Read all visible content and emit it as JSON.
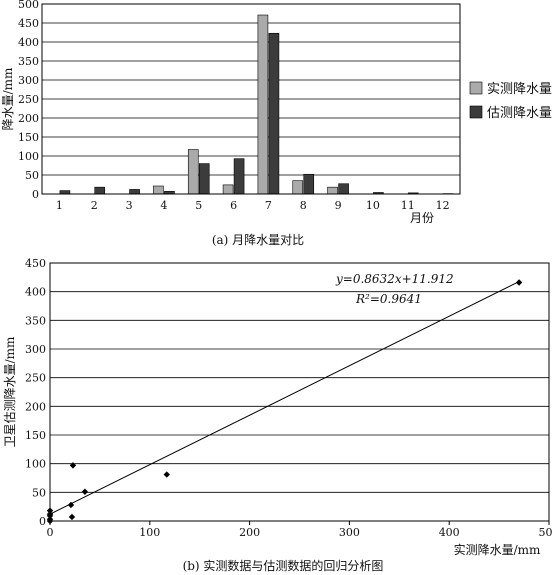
{
  "chart_data": [
    {
      "type": "bar",
      "caption": "(a) 月降水量对比",
      "ylabel": "降水量/mm",
      "xlabel": "月份",
      "categories": [
        "1",
        "2",
        "3",
        "4",
        "5",
        "6",
        "7",
        "8",
        "9",
        "10",
        "11",
        "12"
      ],
      "ylim": [
        0,
        500
      ],
      "yticks": [
        0,
        50,
        100,
        150,
        200,
        250,
        300,
        350,
        400,
        450,
        500
      ],
      "grid": "horizontal",
      "legend": "right",
      "series": [
        {
          "name": "实测降水量",
          "color": "#aaaaaa",
          "values": [
            0,
            0,
            0,
            21,
            117,
            24,
            471,
            35,
            18,
            0,
            0,
            0
          ]
        },
        {
          "name": "估测降水量",
          "color": "#3c3c3c",
          "values": [
            9,
            18,
            12,
            7,
            80,
            93,
            423,
            52,
            27,
            4,
            3,
            1
          ]
        }
      ]
    },
    {
      "type": "scatter",
      "caption": "(b) 实测数据与估测数据的回归分析图",
      "xlabel": "实测降水量/mm",
      "ylabel": "卫星估测降水量/mm",
      "xlim": [
        0,
        500
      ],
      "ylim": [
        0,
        450
      ],
      "xticks": [
        0,
        100,
        200,
        300,
        400,
        500
      ],
      "yticks": [
        0,
        50,
        100,
        150,
        200,
        250,
        300,
        350,
        400,
        450
      ],
      "grid": "horizontal",
      "equation": "y=0.8632x+11.912",
      "r2": "R²=0.9641",
      "fit": {
        "slope": 0.8632,
        "intercept": 11.912,
        "x_range": [
          0,
          471
        ]
      },
      "points": [
        {
          "x": 0,
          "y": 0
        },
        {
          "x": 0,
          "y": 3
        },
        {
          "x": 0,
          "y": 9
        },
        {
          "x": 0,
          "y": 12
        },
        {
          "x": 0,
          "y": 18
        },
        {
          "x": 21,
          "y": 28
        },
        {
          "x": 22,
          "y": 7
        },
        {
          "x": 23,
          "y": 97
        },
        {
          "x": 35,
          "y": 51
        },
        {
          "x": 117,
          "y": 81
        },
        {
          "x": 470,
          "y": 416
        }
      ]
    }
  ]
}
